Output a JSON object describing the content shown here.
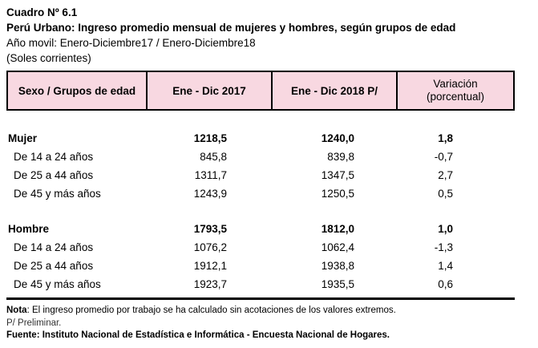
{
  "header": {
    "line1": "Cuadro Nº 6.1",
    "line2": "Perú Urbano: Ingreso promedio mensual de mujeres y hombres, según grupos de edad",
    "line3": "Año movil: Enero-Diciembre17 / Enero-Diciembre18",
    "line4": "(Soles corrientes)"
  },
  "table": {
    "columns": {
      "c1": "Sexo / Grupos de edad",
      "c2": "Ene - Dic 2017",
      "c3": "Ene - Dic 2018 P/",
      "c4_line1": "Variación",
      "c4_line2": "(porcentual)"
    },
    "rows": [
      {
        "label": "Mujer",
        "v2017": "1218,5",
        "v2018": "1240,0",
        "variation": "1,8"
      },
      {
        "label": "De 14 a 24 años",
        "v2017": "845,8",
        "v2018": "839,8",
        "variation": "-0,7"
      },
      {
        "label": "De 25 a 44 años",
        "v2017": "1311,7",
        "v2018": "1347,5",
        "variation": "2,7"
      },
      {
        "label": "De 45 y más años",
        "v2017": "1243,9",
        "v2018": "1250,5",
        "variation": "0,5"
      },
      {
        "label": "Hombre",
        "v2017": "1793,5",
        "v2018": "1812,0",
        "variation": "1,0"
      },
      {
        "label": "De 14 a 24 años",
        "v2017": "1076,2",
        "v2018": "1062,4",
        "variation": "-1,3"
      },
      {
        "label": "De 25 a 44 años",
        "v2017": "1912,1",
        "v2018": "1938,8",
        "variation": "1,4"
      },
      {
        "label": "De 45 y más años",
        "v2017": "1923,7",
        "v2018": "1935,5",
        "variation": "0,6"
      }
    ]
  },
  "footer": {
    "note_label": "Nota",
    "note_text": ": El ingreso promedio por trabajo se ha calculado sin acotaciones de los valores extremos.",
    "preliminary": "P/  Preliminar.",
    "source": "Fuente: Instituto Nacional de Estadística e Informática - Encuesta Nacional de Hogares."
  },
  "colors": {
    "table_header_bg": "#f8d8e1",
    "border": "#000000"
  }
}
